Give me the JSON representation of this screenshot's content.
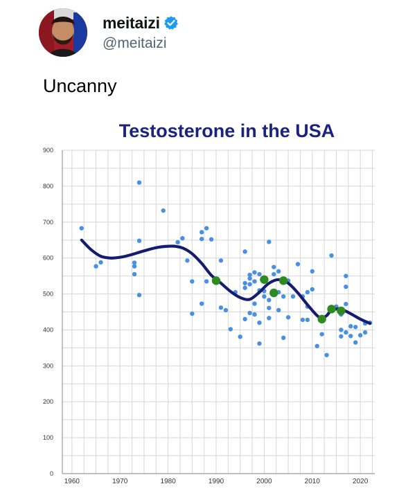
{
  "tweet": {
    "display_name": "meitaizi",
    "handle": "@meitaizi",
    "verified": true,
    "verified_icon": "verified-badge-icon",
    "text": "Uncanny",
    "colors": {
      "name": "#0f1419",
      "handle": "#536471",
      "verified": "#1d9bf0"
    }
  },
  "chart_data": {
    "type": "scatter",
    "title": "Testosterone in the USA",
    "xlabel": "",
    "ylabel": "",
    "xlim": [
      1958,
      2023
    ],
    "ylim": [
      0,
      900
    ],
    "xticks": [
      1960,
      1970,
      1980,
      1990,
      2000,
      2010,
      2020
    ],
    "yticks": [
      0,
      100,
      200,
      300,
      400,
      500,
      600,
      700,
      800,
      900
    ],
    "grid": true,
    "colors": {
      "title": "#1a237e",
      "points": "#4a90e2",
      "highlight": "#2e8b22",
      "trend": "#151b6e",
      "grid": "#d6d6d6"
    },
    "series": [
      {
        "type": "scatter",
        "points": [
          [
            1962,
            683
          ],
          [
            1965,
            577
          ],
          [
            1966,
            588
          ],
          [
            1973,
            577
          ],
          [
            1973,
            587
          ],
          [
            1973,
            555
          ],
          [
            1974,
            810
          ],
          [
            1974,
            648
          ],
          [
            1974,
            497
          ],
          [
            1979,
            732
          ],
          [
            1982,
            644
          ],
          [
            1983,
            655
          ],
          [
            1984,
            593
          ],
          [
            1985,
            535
          ],
          [
            1985,
            445
          ],
          [
            1987,
            672
          ],
          [
            1987,
            653
          ],
          [
            1987,
            473
          ],
          [
            1988,
            683
          ],
          [
            1988,
            535
          ],
          [
            1989,
            652
          ],
          [
            1991,
            462
          ],
          [
            1991,
            593
          ],
          [
            1992,
            455
          ],
          [
            1993,
            402
          ],
          [
            1994,
            505
          ],
          [
            1995,
            381
          ],
          [
            1996,
            618
          ],
          [
            1996,
            530
          ],
          [
            1996,
            517
          ],
          [
            1996,
            430
          ],
          [
            1997,
            553
          ],
          [
            1997,
            543
          ],
          [
            1997,
            527
          ],
          [
            1997,
            447
          ],
          [
            1998,
            560
          ],
          [
            1998,
            535
          ],
          [
            1998,
            473
          ],
          [
            1998,
            443
          ],
          [
            1999,
            362
          ],
          [
            1999,
            420
          ],
          [
            1999,
            510
          ],
          [
            1999,
            555
          ],
          [
            2000,
            508
          ],
          [
            2000,
            493
          ],
          [
            2001,
            645
          ],
          [
            2001,
            483
          ],
          [
            2001,
            461
          ],
          [
            2001,
            433
          ],
          [
            2002,
            575
          ],
          [
            2002,
            555
          ],
          [
            2003,
            563
          ],
          [
            2003,
            505
          ],
          [
            2003,
            455
          ],
          [
            2004,
            493
          ],
          [
            2004,
            378
          ],
          [
            2005,
            537
          ],
          [
            2005,
            435
          ],
          [
            2006,
            493
          ],
          [
            2007,
            583
          ],
          [
            2008,
            428
          ],
          [
            2008,
            493
          ],
          [
            2009,
            505
          ],
          [
            2009,
            465
          ],
          [
            2009,
            428
          ],
          [
            2010,
            563
          ],
          [
            2010,
            513
          ],
          [
            2011,
            355
          ],
          [
            2012,
            388
          ],
          [
            2013,
            330
          ],
          [
            2014,
            607
          ],
          [
            2015,
            465
          ],
          [
            2016,
            443
          ],
          [
            2016,
            400
          ],
          [
            2016,
            382
          ],
          [
            2017,
            550
          ],
          [
            2017,
            520
          ],
          [
            2017,
            472
          ],
          [
            2017,
            393
          ],
          [
            2018,
            410
          ],
          [
            2018,
            383
          ],
          [
            2019,
            365
          ],
          [
            2019,
            408
          ],
          [
            2020,
            385
          ],
          [
            2021,
            393
          ],
          [
            2021,
            418
          ],
          [
            2022,
            420
          ]
        ]
      },
      {
        "type": "scatter",
        "points": [
          [
            1990,
            537
          ],
          [
            2000,
            540
          ],
          [
            2002,
            503
          ],
          [
            2004,
            537
          ],
          [
            2012,
            430
          ],
          [
            2014,
            458
          ],
          [
            2016,
            453
          ]
        ]
      },
      {
        "type": "line",
        "points": [
          [
            1962,
            650
          ],
          [
            1964,
            623
          ],
          [
            1966,
            605
          ],
          [
            1968,
            600
          ],
          [
            1970,
            602
          ],
          [
            1972,
            608
          ],
          [
            1975,
            620
          ],
          [
            1978,
            630
          ],
          [
            1981,
            633
          ],
          [
            1983,
            628
          ],
          [
            1985,
            612
          ],
          [
            1987,
            585
          ],
          [
            1989,
            552
          ],
          [
            1991,
            530
          ],
          [
            1993,
            507
          ],
          [
            1995,
            490
          ],
          [
            1997,
            485
          ],
          [
            1999,
            505
          ],
          [
            2001,
            530
          ],
          [
            2003,
            540
          ],
          [
            2005,
            530
          ],
          [
            2007,
            503
          ],
          [
            2009,
            470
          ],
          [
            2011,
            440
          ],
          [
            2012,
            433
          ],
          [
            2013,
            440
          ],
          [
            2014,
            455
          ],
          [
            2015,
            458
          ],
          [
            2016,
            458
          ],
          [
            2018,
            445
          ],
          [
            2020,
            430
          ],
          [
            2022,
            418
          ]
        ]
      }
    ]
  }
}
